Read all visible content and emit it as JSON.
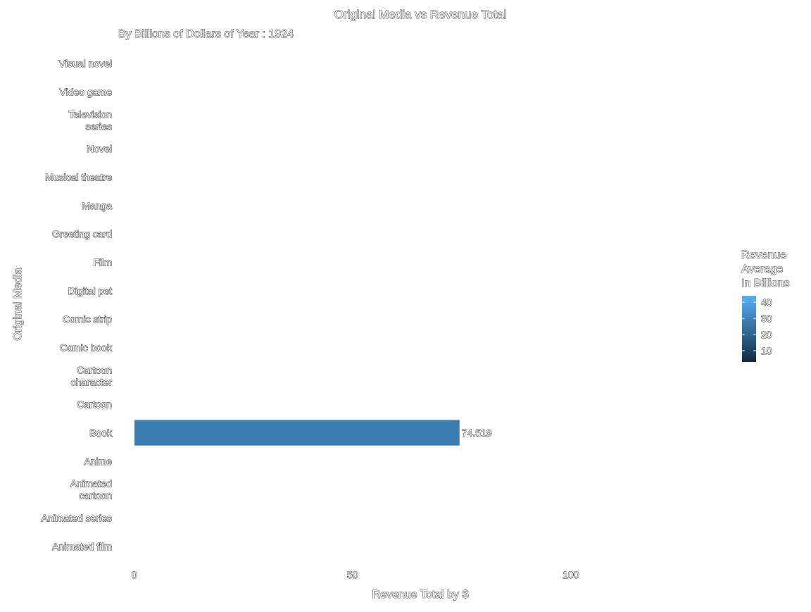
{
  "chart_data": {
    "type": "bar",
    "orientation": "horizontal",
    "title": "Original Media vs Revenue Total",
    "subtitle": "By Billions of Dollars of Year : 1924",
    "xlabel": "Revenue Total by $",
    "ylabel": "Original Media",
    "categories": [
      "Visual novel",
      "Video game",
      "Television series",
      "Novel",
      "Musical theatre",
      "Manga",
      "Greeting card",
      "Film",
      "Digital pet",
      "Comic strip",
      "Comic book",
      "Cartoon character",
      "Cartoon",
      "Book",
      "Anime",
      "Animated cartoon",
      "Animated series",
      "Animated film"
    ],
    "category_labels": [
      [
        "Visual novel"
      ],
      [
        "Video game"
      ],
      [
        "Television",
        "series"
      ],
      [
        "Novel"
      ],
      [
        "Musical theatre"
      ],
      [
        "Manga"
      ],
      [
        "Greeting card"
      ],
      [
        "Film"
      ],
      [
        "Digital pet"
      ],
      [
        "Comic strip"
      ],
      [
        "Comic book"
      ],
      [
        "Cartoon",
        "character"
      ],
      [
        "Cartoon"
      ],
      [
        "Book"
      ],
      [
        "Anime"
      ],
      [
        "Animated",
        "cartoon"
      ],
      [
        "Animated series"
      ],
      [
        "Animated film"
      ]
    ],
    "values": [
      null,
      null,
      null,
      null,
      null,
      null,
      null,
      null,
      null,
      null,
      null,
      null,
      null,
      74.519,
      null,
      null,
      null,
      null
    ],
    "data_labels": [
      "",
      "",
      "",
      "",
      "",
      "",
      "",
      "",
      "",
      "",
      "",
      "",
      "",
      "74.519",
      "",
      "",
      "",
      ""
    ],
    "xlim": [
      -3.7,
      137
    ],
    "xticks": [
      0,
      50,
      100
    ],
    "xtick_labels": [
      "0",
      "50",
      "100"
    ],
    "grid": false,
    "bar_fill_value": 28,
    "color_scale": {
      "title_lines": [
        "Revenue",
        "Average",
        "In Billions"
      ],
      "low_color": "#132b43",
      "high_color": "#56b1f7",
      "range": [
        3,
        44
      ],
      "ticks": [
        10,
        20,
        30,
        40
      ],
      "tick_labels": [
        "10",
        "20",
        "30",
        "40"
      ]
    },
    "legend_position": "right"
  }
}
